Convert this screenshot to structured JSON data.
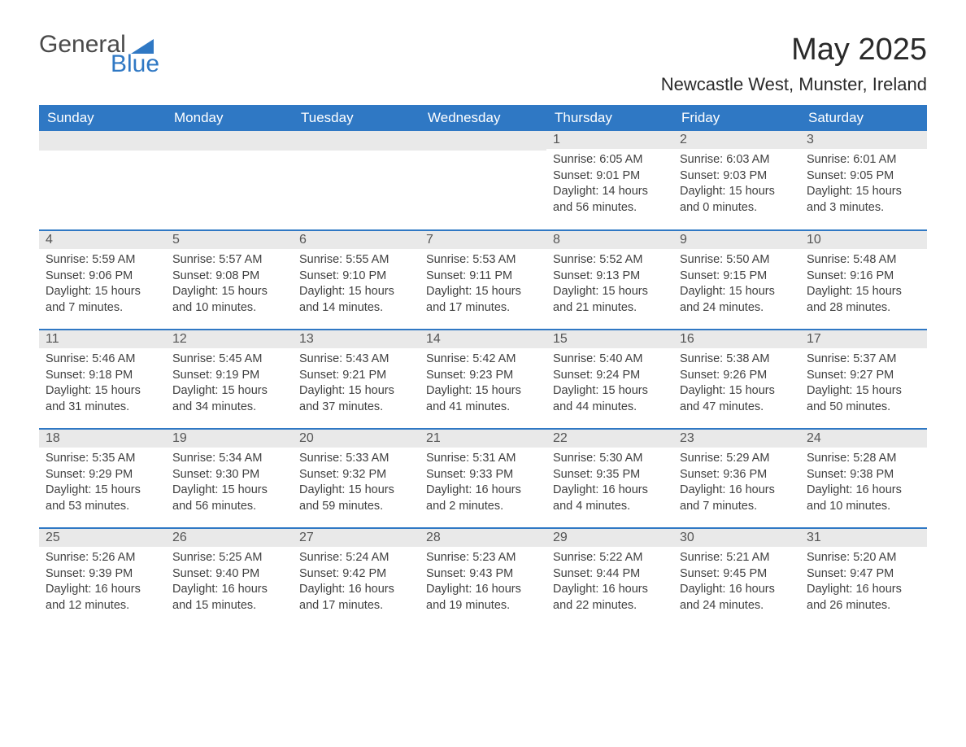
{
  "logo": {
    "word1": "General",
    "word2": "Blue"
  },
  "title": "May 2025",
  "location": "Newcastle West, Munster, Ireland",
  "colors": {
    "brand_blue": "#2f78c4",
    "header_text": "#ffffff",
    "daybar_bg": "#e9e9e9",
    "body_text": "#404040",
    "page_bg": "#ffffff"
  },
  "day_headers": [
    "Sunday",
    "Monday",
    "Tuesday",
    "Wednesday",
    "Thursday",
    "Friday",
    "Saturday"
  ],
  "weeks": [
    [
      null,
      null,
      null,
      null,
      {
        "n": "1",
        "sunrise": "6:05 AM",
        "sunset": "9:01 PM",
        "dh": "14",
        "dm": "56"
      },
      {
        "n": "2",
        "sunrise": "6:03 AM",
        "sunset": "9:03 PM",
        "dh": "15",
        "dm": "0"
      },
      {
        "n": "3",
        "sunrise": "6:01 AM",
        "sunset": "9:05 PM",
        "dh": "15",
        "dm": "3"
      }
    ],
    [
      {
        "n": "4",
        "sunrise": "5:59 AM",
        "sunset": "9:06 PM",
        "dh": "15",
        "dm": "7"
      },
      {
        "n": "5",
        "sunrise": "5:57 AM",
        "sunset": "9:08 PM",
        "dh": "15",
        "dm": "10"
      },
      {
        "n": "6",
        "sunrise": "5:55 AM",
        "sunset": "9:10 PM",
        "dh": "15",
        "dm": "14"
      },
      {
        "n": "7",
        "sunrise": "5:53 AM",
        "sunset": "9:11 PM",
        "dh": "15",
        "dm": "17"
      },
      {
        "n": "8",
        "sunrise": "5:52 AM",
        "sunset": "9:13 PM",
        "dh": "15",
        "dm": "21"
      },
      {
        "n": "9",
        "sunrise": "5:50 AM",
        "sunset": "9:15 PM",
        "dh": "15",
        "dm": "24"
      },
      {
        "n": "10",
        "sunrise": "5:48 AM",
        "sunset": "9:16 PM",
        "dh": "15",
        "dm": "28"
      }
    ],
    [
      {
        "n": "11",
        "sunrise": "5:46 AM",
        "sunset": "9:18 PM",
        "dh": "15",
        "dm": "31"
      },
      {
        "n": "12",
        "sunrise": "5:45 AM",
        "sunset": "9:19 PM",
        "dh": "15",
        "dm": "34"
      },
      {
        "n": "13",
        "sunrise": "5:43 AM",
        "sunset": "9:21 PM",
        "dh": "15",
        "dm": "37"
      },
      {
        "n": "14",
        "sunrise": "5:42 AM",
        "sunset": "9:23 PM",
        "dh": "15",
        "dm": "41"
      },
      {
        "n": "15",
        "sunrise": "5:40 AM",
        "sunset": "9:24 PM",
        "dh": "15",
        "dm": "44"
      },
      {
        "n": "16",
        "sunrise": "5:38 AM",
        "sunset": "9:26 PM",
        "dh": "15",
        "dm": "47"
      },
      {
        "n": "17",
        "sunrise": "5:37 AM",
        "sunset": "9:27 PM",
        "dh": "15",
        "dm": "50"
      }
    ],
    [
      {
        "n": "18",
        "sunrise": "5:35 AM",
        "sunset": "9:29 PM",
        "dh": "15",
        "dm": "53"
      },
      {
        "n": "19",
        "sunrise": "5:34 AM",
        "sunset": "9:30 PM",
        "dh": "15",
        "dm": "56"
      },
      {
        "n": "20",
        "sunrise": "5:33 AM",
        "sunset": "9:32 PM",
        "dh": "15",
        "dm": "59"
      },
      {
        "n": "21",
        "sunrise": "5:31 AM",
        "sunset": "9:33 PM",
        "dh": "16",
        "dm": "2"
      },
      {
        "n": "22",
        "sunrise": "5:30 AM",
        "sunset": "9:35 PM",
        "dh": "16",
        "dm": "4"
      },
      {
        "n": "23",
        "sunrise": "5:29 AM",
        "sunset": "9:36 PM",
        "dh": "16",
        "dm": "7"
      },
      {
        "n": "24",
        "sunrise": "5:28 AM",
        "sunset": "9:38 PM",
        "dh": "16",
        "dm": "10"
      }
    ],
    [
      {
        "n": "25",
        "sunrise": "5:26 AM",
        "sunset": "9:39 PM",
        "dh": "16",
        "dm": "12"
      },
      {
        "n": "26",
        "sunrise": "5:25 AM",
        "sunset": "9:40 PM",
        "dh": "16",
        "dm": "15"
      },
      {
        "n": "27",
        "sunrise": "5:24 AM",
        "sunset": "9:42 PM",
        "dh": "16",
        "dm": "17"
      },
      {
        "n": "28",
        "sunrise": "5:23 AM",
        "sunset": "9:43 PM",
        "dh": "16",
        "dm": "19"
      },
      {
        "n": "29",
        "sunrise": "5:22 AM",
        "sunset": "9:44 PM",
        "dh": "16",
        "dm": "22"
      },
      {
        "n": "30",
        "sunrise": "5:21 AM",
        "sunset": "9:45 PM",
        "dh": "16",
        "dm": "24"
      },
      {
        "n": "31",
        "sunrise": "5:20 AM",
        "sunset": "9:47 PM",
        "dh": "16",
        "dm": "26"
      }
    ]
  ],
  "labels": {
    "sunrise": "Sunrise: ",
    "sunset": "Sunset: ",
    "daylight": "Daylight: ",
    "hours_and": " hours and ",
    "minutes": " minutes."
  }
}
